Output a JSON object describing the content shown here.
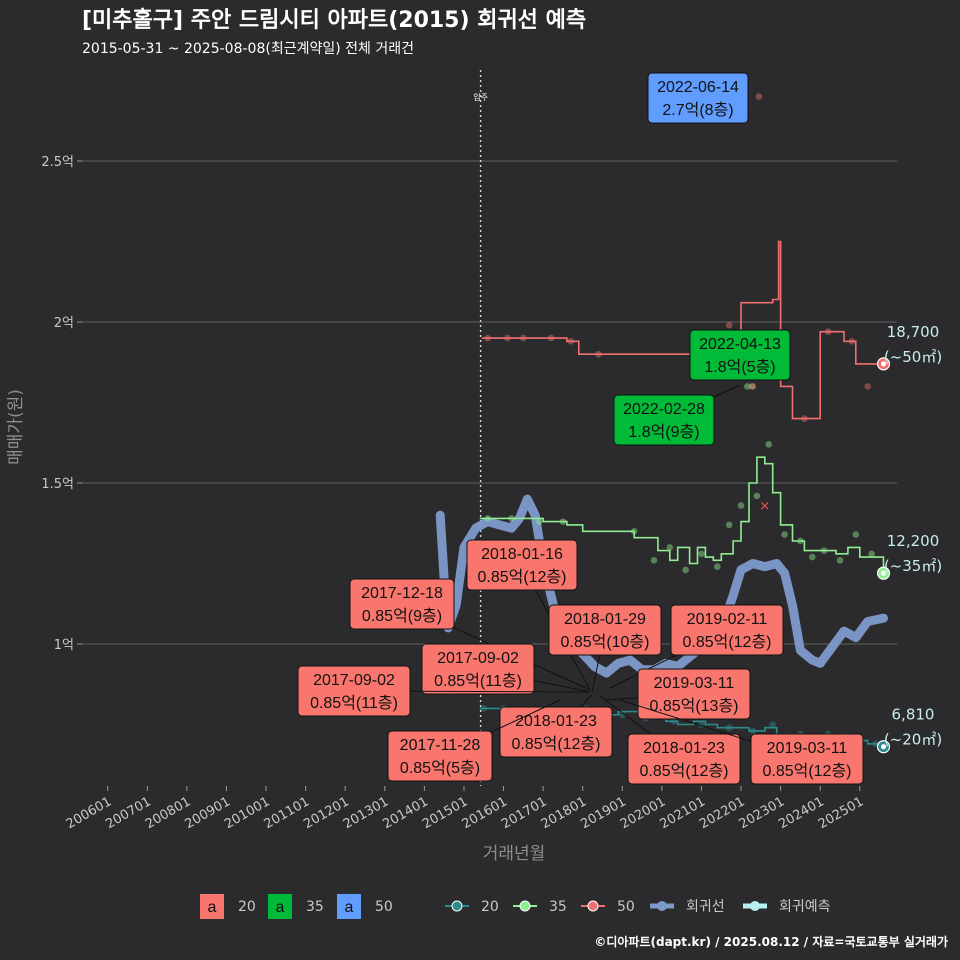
{
  "chart_data": {
    "type": "scatter",
    "title": "[미추홀구] 주안 드림시티 아파트(2015) 회귀선 예측",
    "subtitle": "2015-05-31 ~ 2025-08-08(최근계약일) 전체 거래건",
    "xlabel": "거래년월",
    "ylabel": "매매가(원)",
    "x_ticks": [
      "200601",
      "200701",
      "200801",
      "200901",
      "201001",
      "201101",
      "201201",
      "201301",
      "201401",
      "201501",
      "201601",
      "201701",
      "201801",
      "201901",
      "202001",
      "202101",
      "202201",
      "202301",
      "202401",
      "202501"
    ],
    "y_ticks": [
      {
        "value": 1.0,
        "label": "1억"
      },
      {
        "value": 1.5,
        "label": "1.5억"
      },
      {
        "value": 2.0,
        "label": "2억"
      },
      {
        "value": 2.5,
        "label": "2.5억"
      }
    ],
    "ylim": [
      0.55,
      2.8
    ],
    "xlim": [
      2005.3,
      2025.95
    ],
    "grid": true,
    "reference_line": {
      "x": 2015.42,
      "label": "입주"
    },
    "colors": {
      "20": "#2e8b8b",
      "35": "#90ee90",
      "50": "#f07070",
      "regression": "#7e9acb",
      "regression_pred": "#b7f0f0",
      "box20": "#f8766d",
      "box35": "#00ba38",
      "box50": "#619cff"
    },
    "series": [
      {
        "name": "20",
        "step_line": [
          [
            2015.4,
            0.8
          ],
          [
            2015.9,
            0.8
          ],
          [
            2016.5,
            0.8
          ],
          [
            2016.7,
            0.79
          ],
          [
            2016.9,
            0.79
          ],
          [
            2017.1,
            0.79
          ],
          [
            2017.4,
            0.8
          ],
          [
            2017.8,
            0.79
          ],
          [
            2018.0,
            0.8
          ],
          [
            2018.3,
            0.8
          ],
          [
            2018.6,
            0.78
          ],
          [
            2018.9,
            0.79
          ],
          [
            2019.2,
            0.79
          ],
          [
            2019.5,
            0.77
          ],
          [
            2019.8,
            0.77
          ],
          [
            2020.1,
            0.76
          ],
          [
            2020.4,
            0.75
          ],
          [
            2020.8,
            0.76
          ],
          [
            2021.1,
            0.75
          ],
          [
            2021.4,
            0.74
          ],
          [
            2021.8,
            0.74
          ],
          [
            2022.2,
            0.73
          ],
          [
            2022.6,
            0.74
          ],
          [
            2022.9,
            0.72
          ],
          [
            2023.3,
            0.71
          ],
          [
            2023.7,
            0.71
          ],
          [
            2024.0,
            0.71
          ],
          [
            2024.4,
            0.72
          ],
          [
            2024.8,
            0.7
          ],
          [
            2025.2,
            0.69
          ],
          [
            2025.6,
            0.681
          ]
        ],
        "points": [
          [
            2015.5,
            0.8
          ],
          [
            2016.0,
            0.8
          ],
          [
            2016.8,
            0.79
          ],
          [
            2017.6,
            0.79
          ],
          [
            2018.1,
            0.8
          ],
          [
            2018.5,
            0.79
          ],
          [
            2019.0,
            0.78
          ],
          [
            2019.6,
            0.77
          ],
          [
            2020.3,
            0.76
          ],
          [
            2021.0,
            0.75
          ],
          [
            2021.7,
            0.74
          ],
          [
            2022.3,
            0.73
          ],
          [
            2022.8,
            0.75
          ],
          [
            2023.5,
            0.72
          ],
          [
            2024.2,
            0.72
          ],
          [
            2024.9,
            0.71
          ],
          [
            2025.4,
            0.69
          ]
        ]
      },
      {
        "name": "35",
        "step_line": [
          [
            2015.4,
            1.39
          ],
          [
            2016.0,
            1.39
          ],
          [
            2016.6,
            1.39
          ],
          [
            2017.0,
            1.38
          ],
          [
            2017.6,
            1.37
          ],
          [
            2018.0,
            1.35
          ],
          [
            2018.7,
            1.35
          ],
          [
            2019.3,
            1.33
          ],
          [
            2019.7,
            1.33
          ],
          [
            2019.9,
            1.29
          ],
          [
            2020.2,
            1.26
          ],
          [
            2020.4,
            1.3
          ],
          [
            2020.7,
            1.25
          ],
          [
            2020.9,
            1.3
          ],
          [
            2021.1,
            1.27
          ],
          [
            2021.3,
            1.26
          ],
          [
            2021.5,
            1.28
          ],
          [
            2021.8,
            1.32
          ],
          [
            2022.0,
            1.38
          ],
          [
            2022.2,
            1.5
          ],
          [
            2022.4,
            1.58
          ],
          [
            2022.6,
            1.56
          ],
          [
            2022.8,
            1.47
          ],
          [
            2023.0,
            1.37
          ],
          [
            2023.3,
            1.32
          ],
          [
            2023.6,
            1.29
          ],
          [
            2024.0,
            1.29
          ],
          [
            2024.4,
            1.28
          ],
          [
            2024.7,
            1.3
          ],
          [
            2025.0,
            1.27
          ],
          [
            2025.3,
            1.27
          ],
          [
            2025.6,
            1.22
          ]
        ],
        "points": [
          [
            2015.6,
            1.39
          ],
          [
            2016.2,
            1.39
          ],
          [
            2016.9,
            1.38
          ],
          [
            2017.5,
            1.38
          ],
          [
            2019.3,
            1.35
          ],
          [
            2019.8,
            1.26
          ],
          [
            2020.2,
            1.3
          ],
          [
            2020.6,
            1.23
          ],
          [
            2021.0,
            1.28
          ],
          [
            2021.4,
            1.24
          ],
          [
            2021.7,
            1.37
          ],
          [
            2022.0,
            1.43
          ],
          [
            2022.16,
            1.8
          ],
          [
            2022.28,
            1.8
          ],
          [
            2022.4,
            1.46
          ],
          [
            2022.7,
            1.62
          ],
          [
            2023.1,
            1.34
          ],
          [
            2023.5,
            1.32
          ],
          [
            2023.8,
            1.27
          ],
          [
            2024.1,
            1.29
          ],
          [
            2024.5,
            1.26
          ],
          [
            2024.9,
            1.34
          ],
          [
            2025.3,
            1.28
          ],
          [
            2025.6,
            1.22
          ]
        ]
      },
      {
        "name": "50",
        "step_line": [
          [
            2015.45,
            1.95
          ],
          [
            2016.3,
            1.95
          ],
          [
            2017.0,
            1.95
          ],
          [
            2017.6,
            1.94
          ],
          [
            2017.9,
            1.9
          ],
          [
            2018.5,
            1.9
          ],
          [
            2021.7,
            1.96
          ],
          [
            2022.0,
            2.06
          ],
          [
            2022.4,
            2.06
          ],
          [
            2022.8,
            2.07
          ],
          [
            2022.95,
            2.25
          ],
          [
            2023.0,
            1.8
          ],
          [
            2023.3,
            1.7
          ],
          [
            2023.7,
            1.7
          ],
          [
            2024.0,
            1.97
          ],
          [
            2024.3,
            1.97
          ],
          [
            2024.6,
            1.94
          ],
          [
            2024.9,
            1.87
          ],
          [
            2025.3,
            1.87
          ],
          [
            2025.6,
            1.87
          ]
        ],
        "points": [
          [
            2015.6,
            1.95
          ],
          [
            2016.1,
            1.95
          ],
          [
            2016.5,
            1.95
          ],
          [
            2017.2,
            1.95
          ],
          [
            2017.7,
            1.94
          ],
          [
            2018.4,
            1.9
          ],
          [
            2021.7,
            1.99
          ],
          [
            2022.3,
            1.8
          ],
          [
            2022.45,
            2.7
          ],
          [
            2023.6,
            1.7
          ],
          [
            2024.2,
            1.97
          ],
          [
            2024.8,
            1.94
          ],
          [
            2025.2,
            1.8
          ],
          [
            2025.6,
            1.87
          ]
        ]
      }
    ],
    "regression_line": [
      [
        2014.4,
        1.4
      ],
      [
        2014.5,
        1.2
      ],
      [
        2014.6,
        1.05
      ],
      [
        2014.8,
        1.12
      ],
      [
        2015.0,
        1.3
      ],
      [
        2015.3,
        1.36
      ],
      [
        2015.6,
        1.38
      ],
      [
        2015.9,
        1.37
      ],
      [
        2016.2,
        1.36
      ],
      [
        2016.4,
        1.39
      ],
      [
        2016.6,
        1.45
      ],
      [
        2016.8,
        1.4
      ],
      [
        2017.0,
        1.25
      ],
      [
        2017.3,
        1.1
      ],
      [
        2017.7,
        1.0
      ],
      [
        2018.0,
        0.97
      ],
      [
        2018.3,
        0.93
      ],
      [
        2018.6,
        0.91
      ],
      [
        2018.9,
        0.94
      ],
      [
        2019.2,
        0.95
      ],
      [
        2019.5,
        0.92
      ],
      [
        2019.8,
        0.92
      ],
      [
        2020.1,
        0.94
      ],
      [
        2020.4,
        0.93
      ],
      [
        2020.7,
        0.96
      ],
      [
        2021.0,
        0.99
      ],
      [
        2021.3,
        1.03
      ],
      [
        2021.6,
        1.08
      ],
      [
        2021.8,
        1.15
      ],
      [
        2022.0,
        1.23
      ],
      [
        2022.3,
        1.25
      ],
      [
        2022.6,
        1.24
      ],
      [
        2022.9,
        1.25
      ],
      [
        2023.1,
        1.22
      ],
      [
        2023.3,
        1.12
      ],
      [
        2023.5,
        0.98
      ],
      [
        2023.8,
        0.95
      ],
      [
        2024.0,
        0.94
      ],
      [
        2024.3,
        0.99
      ],
      [
        2024.6,
        1.04
      ],
      [
        2024.9,
        1.02
      ],
      [
        2025.2,
        1.07
      ],
      [
        2025.6,
        1.08
      ]
    ],
    "end_labels": [
      {
        "series": "50",
        "x": 2025.6,
        "y": 1.87,
        "value": "18,700",
        "area": "(~50㎡)"
      },
      {
        "series": "35",
        "x": 2025.6,
        "y": 1.22,
        "value": "12,200",
        "area": "(~35㎡)"
      },
      {
        "series": "20",
        "x": 2025.6,
        "y": 0.681,
        "value": "6,810",
        "area": "(~20㎡)"
      }
    ],
    "annotations": [
      {
        "series": "50",
        "date": "2022-06-14",
        "price": "2.7억(8층)",
        "x": 2022.45,
        "y": 2.7
      },
      {
        "series": "35",
        "date": "2022-04-13",
        "price": "1.8억(5층)",
        "x": 2022.28,
        "y": 1.8
      },
      {
        "series": "35",
        "date": "2022-02-28",
        "price": "1.8억(9층)",
        "x": 2022.16,
        "y": 1.8
      },
      {
        "series": "20",
        "date": "2018-01-16",
        "price": "0.85억(12층)",
        "x": 2018.04,
        "y": 0.85
      },
      {
        "series": "20",
        "date": "2017-12-18",
        "price": "0.85억(9층)",
        "x": 2017.96,
        "y": 0.85
      },
      {
        "series": "20",
        "date": "2018-01-29",
        "price": "0.85억(10층)",
        "x": 2018.08,
        "y": 0.85
      },
      {
        "series": "20",
        "date": "2019-02-11",
        "price": "0.85억(12층)",
        "x": 2019.11,
        "y": 0.85
      },
      {
        "series": "20",
        "date": "2017-09-02",
        "price": "0.85억(11층)",
        "x": 2017.67,
        "y": 0.85
      },
      {
        "series": "20",
        "date": "2017-09-02",
        "price": "0.85억(11층)",
        "x": 2017.67,
        "y": 0.85
      },
      {
        "series": "20",
        "date": "2019-03-11",
        "price": "0.85억(13층)",
        "x": 2019.19,
        "y": 0.85
      },
      {
        "series": "20",
        "date": "2018-01-23",
        "price": "0.85억(12층)",
        "x": 2018.06,
        "y": 0.85
      },
      {
        "series": "20",
        "date": "2017-11-28",
        "price": "0.85억(5층)",
        "x": 2017.91,
        "y": 0.85
      },
      {
        "series": "20",
        "date": "2018-01-23",
        "price": "0.85억(12층)",
        "x": 2018.06,
        "y": 0.85
      },
      {
        "series": "20",
        "date": "2019-03-11",
        "price": "0.85억(12층)",
        "x": 2019.19,
        "y": 0.85
      }
    ],
    "legend": {
      "placement": "bottom",
      "box_items": [
        {
          "glyph": "a",
          "label": "20"
        },
        {
          "glyph": "a",
          "label": "35"
        },
        {
          "glyph": "a",
          "label": "50"
        }
      ],
      "line_items": [
        {
          "label": "20"
        },
        {
          "label": "35"
        },
        {
          "label": "50"
        },
        {
          "label": "회귀선"
        },
        {
          "label": "회귀예측"
        }
      ]
    }
  },
  "credit": "©디아파트(dapt.kr) / 2025.08.12 / 자료=국토교통부 실거래가"
}
